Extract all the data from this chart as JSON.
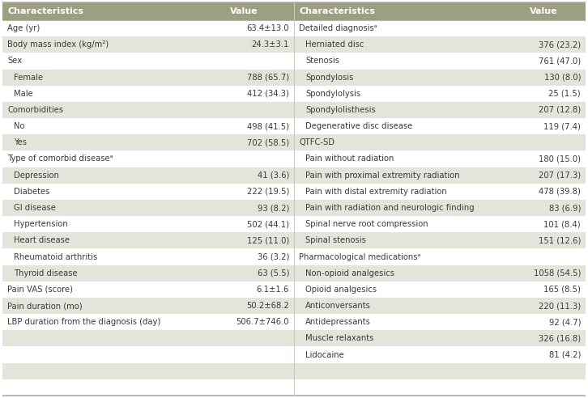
{
  "header_bg": "#9e9e80",
  "header_text": "#ffffff",
  "row_bg_light": "#ffffff",
  "row_bg_dark": "#e4e4da",
  "text_color": "#3a3a3a",
  "font_size": 7.2,
  "header_font_size": 8.0,
  "left_rows": [
    {
      "label": "Age (yr)",
      "value": "63.4±13.0",
      "indent": false
    },
    {
      "label": "Body mass index (kg/m²)",
      "value": "24.3±3.1",
      "indent": false
    },
    {
      "label": "Sex",
      "value": "",
      "indent": false
    },
    {
      "label": "Female",
      "value": "788 (65.7)",
      "indent": true
    },
    {
      "label": "Male",
      "value": "412 (34.3)",
      "indent": true
    },
    {
      "label": "Comorbidities",
      "value": "",
      "indent": false
    },
    {
      "label": "No",
      "value": "498 (41.5)",
      "indent": true
    },
    {
      "label": "Yes",
      "value": "702 (58.5)",
      "indent": true
    },
    {
      "label": "Type of comorbid diseaseᵃ",
      "value": "",
      "indent": false
    },
    {
      "label": "Depression",
      "value": "41 (3.6)",
      "indent": true
    },
    {
      "label": "Diabetes",
      "value": "222 (19.5)",
      "indent": true
    },
    {
      "label": "GI disease",
      "value": "93 (8.2)",
      "indent": true
    },
    {
      "label": "Hypertension",
      "value": "502 (44.1)",
      "indent": true
    },
    {
      "label": "Heart disease",
      "value": "125 (11.0)",
      "indent": true
    },
    {
      "label": "Rheumatoid arthritis",
      "value": "36 (3.2)",
      "indent": true
    },
    {
      "label": "Thyroid disease",
      "value": "63 (5.5)",
      "indent": true
    },
    {
      "label": "Pain VAS (score)",
      "value": "6.1±1.6",
      "indent": false
    },
    {
      "label": "Pain duration (mo)",
      "value": "50.2±68.2",
      "indent": false
    },
    {
      "label": "LBP duration from the diagnosis (day)",
      "value": "506.7±746.0",
      "indent": false
    },
    {
      "label": "",
      "value": "",
      "indent": false
    },
    {
      "label": "",
      "value": "",
      "indent": false
    },
    {
      "label": "",
      "value": "",
      "indent": false
    },
    {
      "label": "",
      "value": "",
      "indent": false
    }
  ],
  "right_rows": [
    {
      "label": "Detailed diagnosisᵃ",
      "value": "",
      "indent": false
    },
    {
      "label": "Herniated disc",
      "value": "376 (23.2)",
      "indent": true
    },
    {
      "label": "Stenosis",
      "value": "761 (47.0)",
      "indent": true
    },
    {
      "label": "Spondylosis",
      "value": "130 (8.0)",
      "indent": true
    },
    {
      "label": "Spondylolysis",
      "value": "25 (1.5)",
      "indent": true
    },
    {
      "label": "Spondylolisthesis",
      "value": "207 (12.8)",
      "indent": true
    },
    {
      "label": "Degenerative disc disease",
      "value": "119 (7.4)",
      "indent": true
    },
    {
      "label": "QTFC-SD",
      "value": "",
      "indent": false
    },
    {
      "label": "Pain without radiation",
      "value": "180 (15.0)",
      "indent": true
    },
    {
      "label": "Pain with proximal extremity radiation",
      "value": "207 (17.3)",
      "indent": true
    },
    {
      "label": "Pain with distal extremity radiation",
      "value": "478 (39.8)",
      "indent": true
    },
    {
      "label": "Pain with radiation and neurologic finding",
      "value": "83 (6.9)",
      "indent": true
    },
    {
      "label": "Spinal nerve root compression",
      "value": "101 (8.4)",
      "indent": true
    },
    {
      "label": "Spinal stenosis",
      "value": "151 (12.6)",
      "indent": true
    },
    {
      "label": "Pharmacological medicationsᵃ",
      "value": "",
      "indent": false
    },
    {
      "label": "Non-opioid analgesics",
      "value": "1058 (54.5)",
      "indent": true
    },
    {
      "label": "Opioid analgesics",
      "value": "165 (8.5)",
      "indent": true
    },
    {
      "label": "Anticonversants",
      "value": "220 (11.3)",
      "indent": true
    },
    {
      "label": "Antidepressants",
      "value": "92 (4.7)",
      "indent": true
    },
    {
      "label": "Muscle relaxants",
      "value": "326 (16.8)",
      "indent": true
    },
    {
      "label": "Lidocaine",
      "value": "81 (4.2)",
      "indent": true
    },
    {
      "label": "",
      "value": "",
      "indent": false
    },
    {
      "label": "",
      "value": "",
      "indent": false
    }
  ],
  "header_labels": [
    "Characteristics",
    "Value",
    "Characteristics",
    "Value"
  ],
  "border_color": "#aaaaaa",
  "divider_color": "#ccccbb"
}
